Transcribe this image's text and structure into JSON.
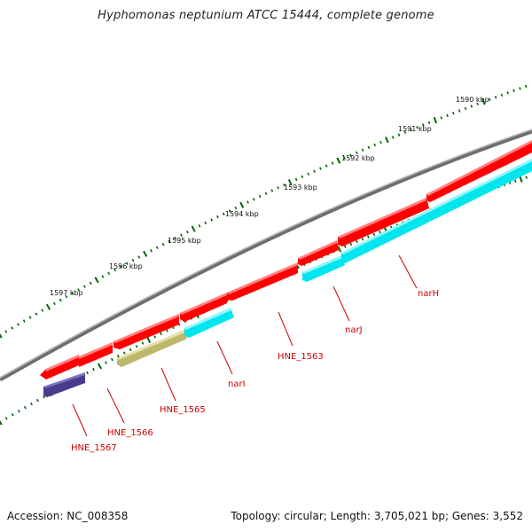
{
  "title": "Hyphomonas neptunium ATCC 15444, complete genome",
  "footer": {
    "accession": "Accession: NC_008358",
    "summary": "Topology: circular; Length: 3,705,021 bp; Genes: 3,552"
  },
  "scale_labels": [
    "1590 kbp",
    "1591 kbp",
    "1592 kbp",
    "1593 kbp",
    "1594 kbp",
    "1595 kbp",
    "1596 kbp",
    "1597 kbp"
  ],
  "colors": {
    "backbone": "#888888",
    "forward_gene": "#ff0000",
    "reverse_gene": "#00e5ee",
    "pale_gene": "#bdb76b",
    "dark_gene": "#483d8b",
    "tick": "#006400",
    "label": "#cc0000"
  },
  "genes": [
    {
      "name": "narH",
      "strand": "reverse",
      "color": "cyan"
    },
    {
      "name": "narJ",
      "strand": "reverse",
      "color": "cyan"
    },
    {
      "name": "narI",
      "strand": "reverse",
      "color": "cyan"
    },
    {
      "name": "HNE_1563",
      "strand": "forward",
      "color": "red"
    },
    {
      "name": "HNE_1565",
      "strand": "reverse",
      "color": "khaki"
    },
    {
      "name": "HNE_1566",
      "strand": "forward",
      "color": "red"
    },
    {
      "name": "HNE_1567",
      "strand": "reverse",
      "color": "darkslateblue"
    }
  ]
}
